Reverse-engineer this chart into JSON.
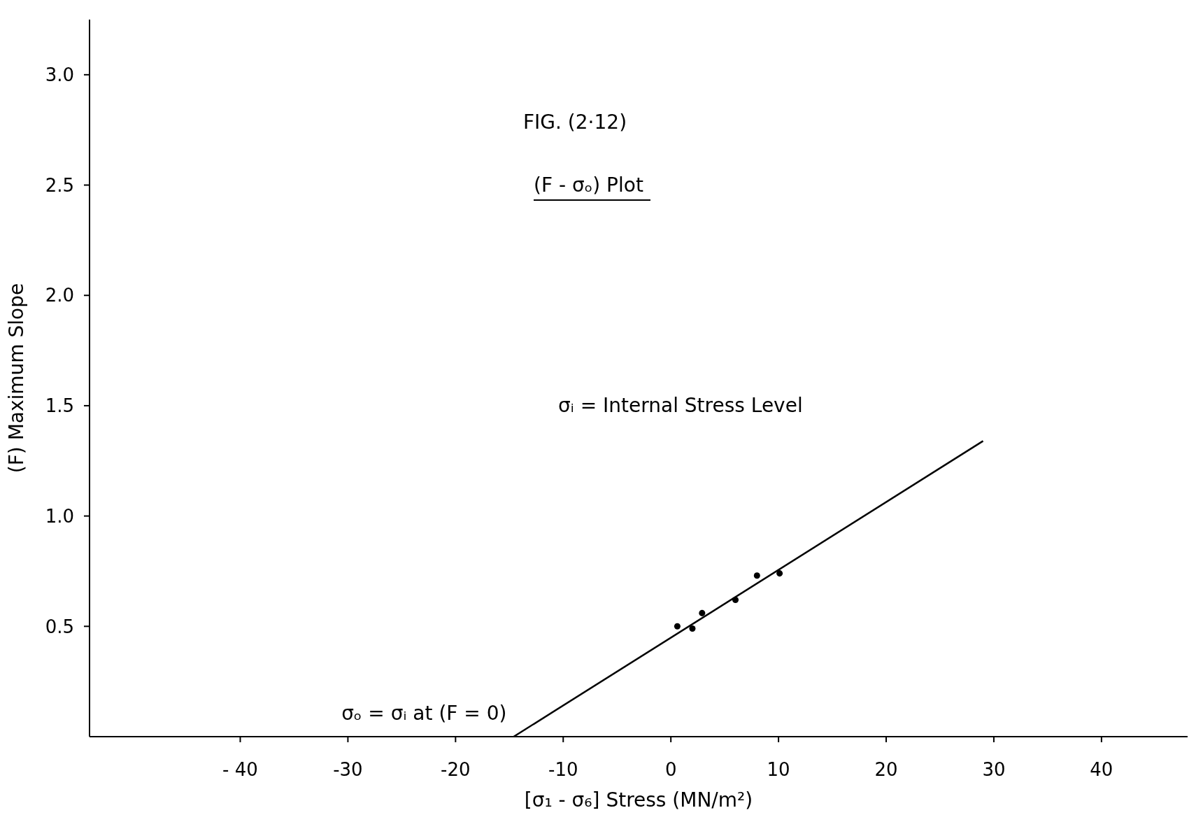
{
  "chart_data": {
    "type": "scatter",
    "title": "FIG. (2·12)",
    "subtitle": "(F - σₒ) Plot",
    "xlabel": "[σ₁ - σ₆] Stress (MN/m²)",
    "ylabel": "(F) Maximum Slope",
    "annotations": [
      "σᵢ = Internal Stress Level",
      {
        "text": "σₒ = σᵢ at (F = 0)",
        "x": -14.6,
        "y": 0
      }
    ],
    "series": [
      {
        "color": "#000000",
        "marker": "circle",
        "x": [
          0.6,
          2.0,
          2.9,
          6.0,
          8.0,
          10.1
        ],
        "values": [
          0.5,
          0.49,
          0.56,
          0.62,
          0.73,
          0.74
        ]
      },
      {
        "type": "line",
        "marker": "none",
        "color": "#000000",
        "x": [
          -14.6,
          29.0
        ],
        "values": [
          0,
          1.34
        ]
      }
    ],
    "line_style": "solid",
    "grid": false,
    "legend": false,
    "xlim": [
      -54,
      48
    ],
    "xticks": [
      {
        "value": -40,
        "label": "- 40"
      },
      -30,
      -20,
      -10,
      0,
      10,
      20,
      30,
      40
    ],
    "ylim": [
      0,
      3.25
    ],
    "yticks": [
      0.5,
      {
        "value": 1,
        "label": "1.0"
      },
      1.5,
      {
        "value": 2,
        "label": "2.0"
      },
      2.5,
      {
        "value": 3,
        "label": "3.0"
      }
    ]
  }
}
